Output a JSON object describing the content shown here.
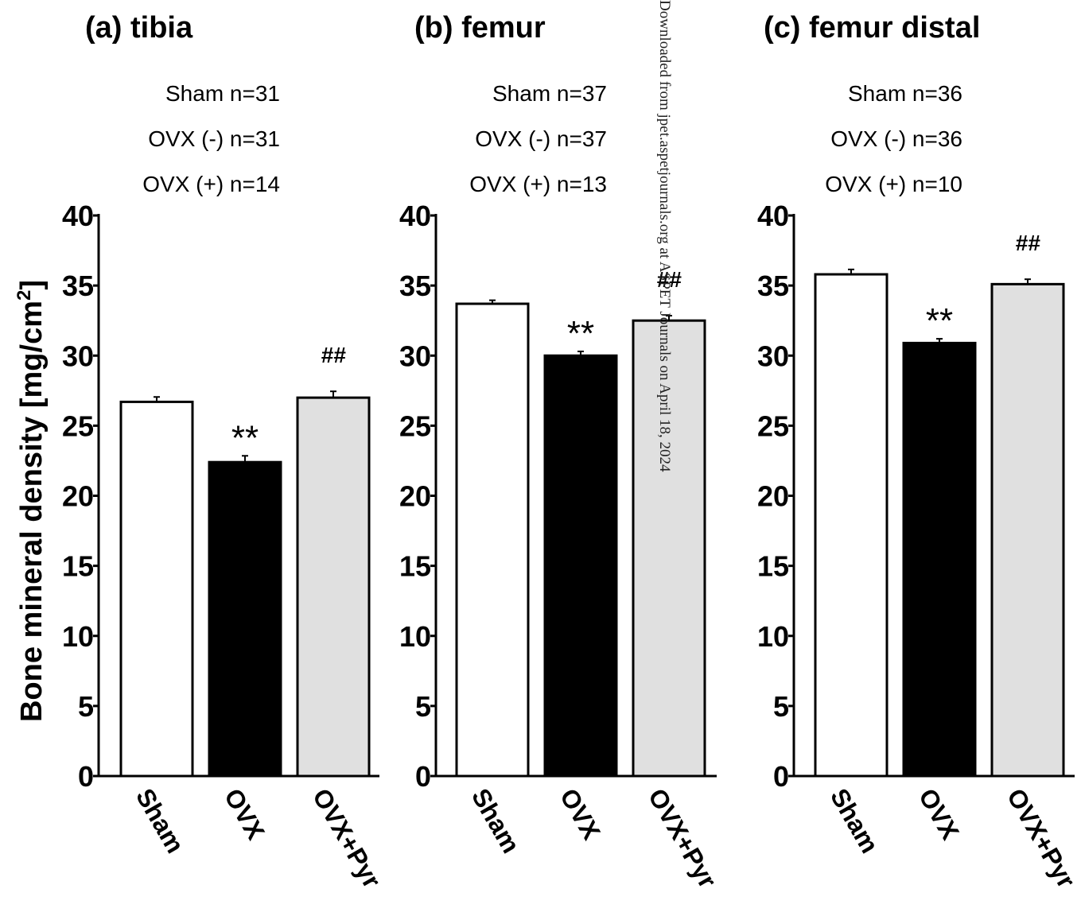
{
  "watermark": "Downloaded from jpet.aspetjournals.org at ASPET Journals on April 18, 2024",
  "colors": {
    "Sham": "#ffffff",
    "OVX": "#000000",
    "OVX+Pyr": "#e0e0e0",
    "axis": "#000000"
  },
  "chart_data": [
    {
      "type": "bar",
      "title": "(a) tibia",
      "ylabel": "Bone mineral density [mg/cm2]",
      "ylim": [
        0,
        40
      ],
      "yticks": [
        "0",
        "5",
        "10",
        "15",
        "20",
        "25",
        "30",
        "35",
        "40"
      ],
      "categories": [
        "Sham",
        "OVX",
        "OVX+Pyr"
      ],
      "values": [
        26.7,
        22.4,
        27.0
      ],
      "errors": [
        0.35,
        0.45,
        0.45
      ],
      "annotations": [
        "",
        "**",
        "##"
      ],
      "sample_sizes": [
        "Sham n=31",
        "OVX (-) n=31",
        "OVX (+) n=14"
      ]
    },
    {
      "type": "bar",
      "title": "(b) femur",
      "ylim": [
        0,
        40
      ],
      "yticks": [
        "0",
        "5",
        "10",
        "15",
        "20",
        "25",
        "30",
        "35",
        "40"
      ],
      "categories": [
        "Sham",
        "OVX",
        "OVX+Pyr"
      ],
      "values": [
        33.7,
        30.0,
        32.5
      ],
      "errors": [
        0.25,
        0.3,
        0.35
      ],
      "annotations": [
        "",
        "**",
        "##"
      ],
      "sample_sizes": [
        "Sham n=37",
        "OVX (-) n=37",
        "OVX (+) n=13"
      ]
    },
    {
      "type": "bar",
      "title": "(c) femur distal",
      "ylim": [
        0,
        40
      ],
      "yticks": [
        "0",
        "5",
        "10",
        "15",
        "20",
        "25",
        "30",
        "35",
        "40"
      ],
      "categories": [
        "Sham",
        "OVX",
        "OVX+Pyr"
      ],
      "values": [
        35.8,
        30.9,
        35.1
      ],
      "errors": [
        0.35,
        0.3,
        0.35
      ],
      "annotations": [
        "",
        "**",
        "##"
      ],
      "sample_sizes": [
        "Sham n=36",
        "OVX (-) n=36",
        "OVX (+) n=10"
      ]
    }
  ]
}
